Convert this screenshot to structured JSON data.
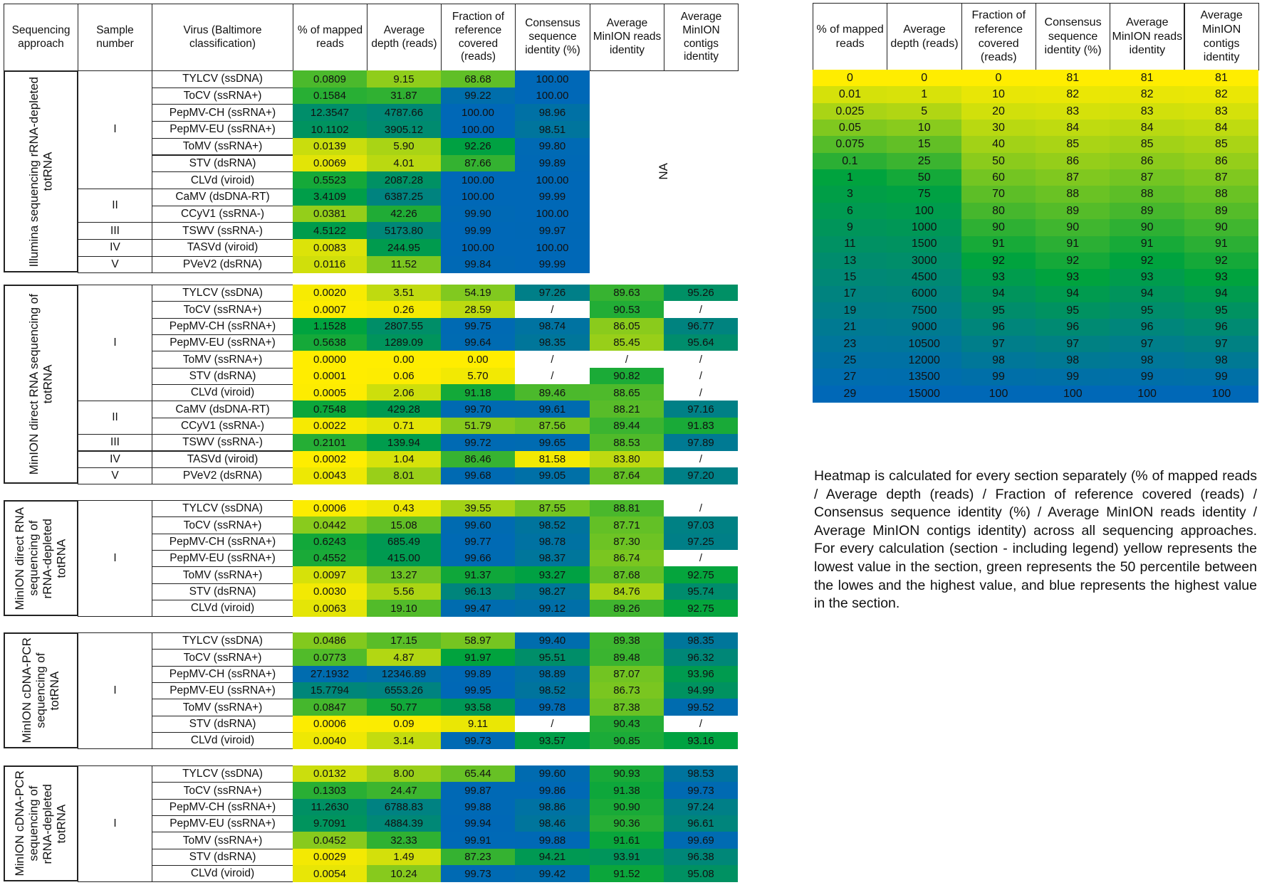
{
  "headers": [
    "Sequencing approach",
    "Sample number",
    "Virus (Baltimore classification)",
    "% of mapped reads",
    "Average depth (reads)",
    "Fraction of reference covered (reads)",
    "Consensus sequence identity (%)",
    "Average MinION reads identity",
    "Average MinION contigs identity"
  ],
  "na_label": "NA",
  "colors": {
    "low": "#ffed00",
    "mid": "#00a33e",
    "high": "#0068b7",
    "missing": "#ffffff"
  },
  "chart_data": {
    "type": "heatmap",
    "sections": [
      {
        "approach": "Illumina sequencing rRNA-depleted totRNA",
        "samples": [
          {
            "label": "I",
            "rows": [
              {
                "virus": "TYLCV (ssDNA)",
                "values": [
                  "0.0809",
                  "9.15",
                  "68.68",
                  "100.00"
                ]
              },
              {
                "virus": "ToCV (ssRNA+)",
                "values": [
                  "0.1584",
                  "31.87",
                  "99.22",
                  "100.00"
                ]
              },
              {
                "virus": "PepMV-CH (ssRNA+)",
                "values": [
                  "12.3547",
                  "4787.66",
                  "100.00",
                  "98.96"
                ]
              },
              {
                "virus": "PepMV-EU (ssRNA+)",
                "values": [
                  "10.1102",
                  "3905.12",
                  "100.00",
                  "98.51"
                ]
              },
              {
                "virus": "ToMV (ssRNA+)",
                "values": [
                  "0.0139",
                  "5.90",
                  "92.26",
                  "99.80"
                ]
              },
              {
                "virus": "STV (dsRNA)",
                "values": [
                  "0.0069",
                  "4.01",
                  "87.66",
                  "99.89"
                ]
              },
              {
                "virus": "CLVd (viroid)",
                "values": [
                  "0.5523",
                  "2087.28",
                  "100.00",
                  "100.00"
                ]
              }
            ]
          },
          {
            "label": "II",
            "rows": [
              {
                "virus": "CaMV (dsDNA-RT)",
                "values": [
                  "3.4109",
                  "6387.25",
                  "100.00",
                  "99.99"
                ]
              },
              {
                "virus": "CCyV1 (ssRNA-)",
                "values": [
                  "0.0381",
                  "42.26",
                  "99.90",
                  "100.00"
                ]
              }
            ]
          },
          {
            "label": "III",
            "rows": [
              {
                "virus": "TSWV (ssRNA-)",
                "values": [
                  "4.5122",
                  "5173.80",
                  "99.99",
                  "99.97"
                ]
              }
            ]
          },
          {
            "label": "IV",
            "rows": [
              {
                "virus": "TASVd (viroid)",
                "values": [
                  "0.0083",
                  "244.95",
                  "100.00",
                  "100.00"
                ]
              }
            ]
          },
          {
            "label": "V",
            "rows": [
              {
                "virus": "PVeV2 (dsRNA)",
                "values": [
                  "0.0116",
                  "11.52",
                  "99.84",
                  "99.99"
                ]
              }
            ]
          }
        ]
      },
      {
        "approach": "MinION direct RNA sequencing of totRNA",
        "samples": [
          {
            "label": "I",
            "rows": [
              {
                "virus": "TYLCV (ssDNA)",
                "values": [
                  "0.0020",
                  "3.51",
                  "54.19",
                  "97.26",
                  "89.63",
                  "95.26"
                ]
              },
              {
                "virus": "ToCV (ssRNA+)",
                "values": [
                  "0.0007",
                  "0.26",
                  "28.59",
                  "/",
                  "90.53",
                  "/"
                ]
              },
              {
                "virus": "PepMV-CH (ssRNA+)",
                "values": [
                  "1.1528",
                  "2807.55",
                  "99.75",
                  "98.74",
                  "86.05",
                  "96.77"
                ]
              },
              {
                "virus": "PepMV-EU (ssRNA+)",
                "values": [
                  "0.5638",
                  "1289.09",
                  "99.64",
                  "98.35",
                  "85.45",
                  "95.64"
                ]
              },
              {
                "virus": "ToMV (ssRNA+)",
                "values": [
                  "0.0000",
                  "0.00",
                  "0.00",
                  "/",
                  "/",
                  "/"
                ]
              },
              {
                "virus": "STV (dsRNA)",
                "values": [
                  "0.0001",
                  "0.06",
                  "5.70",
                  "/",
                  "90.82",
                  "/"
                ]
              },
              {
                "virus": "CLVd (viroid)",
                "values": [
                  "0.0005",
                  "2.06",
                  "91.18",
                  "89.46",
                  "88.65",
                  "/"
                ]
              }
            ]
          },
          {
            "label": "II",
            "rows": [
              {
                "virus": "CaMV (dsDNA-RT)",
                "values": [
                  "0.7548",
                  "429.28",
                  "99.70",
                  "99.61",
                  "88.21",
                  "97.16"
                ]
              },
              {
                "virus": "CCyV1 (ssRNA-)",
                "values": [
                  "0.0022",
                  "0.71",
                  "51.79",
                  "87.56",
                  "89.44",
                  "91.83"
                ]
              }
            ]
          },
          {
            "label": "III",
            "rows": [
              {
                "virus": "TSWV (ssRNA-)",
                "values": [
                  "0.2101",
                  "139.94",
                  "99.72",
                  "99.65",
                  "88.53",
                  "97.89"
                ]
              }
            ]
          },
          {
            "label": "IV",
            "rows": [
              {
                "virus": "TASVd (viroid)",
                "values": [
                  "0.0002",
                  "1.04",
                  "86.46",
                  "81.58",
                  "83.80",
                  "/"
                ]
              }
            ]
          },
          {
            "label": "V",
            "rows": [
              {
                "virus": "PVeV2 (dsRNA)",
                "values": [
                  "0.0043",
                  "8.01",
                  "99.68",
                  "99.05",
                  "87.64",
                  "97.20"
                ]
              }
            ]
          }
        ]
      },
      {
        "approach": "MinION direct RNA sequencing of rRNA-depleted totRNA",
        "samples": [
          {
            "label": "I",
            "rows": [
              {
                "virus": "TYLCV (ssDNA)",
                "values": [
                  "0.0006",
                  "0.43",
                  "39.55",
                  "87.55",
                  "88.81",
                  "/"
                ]
              },
              {
                "virus": "ToCV (ssRNA+)",
                "values": [
                  "0.0442",
                  "15.08",
                  "99.60",
                  "98.52",
                  "87.71",
                  "97.03"
                ]
              },
              {
                "virus": "PepMV-CH (ssRNA+)",
                "values": [
                  "0.6243",
                  "685.49",
                  "99.77",
                  "98.78",
                  "87.30",
                  "97.25"
                ]
              },
              {
                "virus": "PepMV-EU (ssRNA+)",
                "values": [
                  "0.4552",
                  "415.00",
                  "99.66",
                  "98.37",
                  "86.74",
                  "/"
                ]
              },
              {
                "virus": "ToMV (ssRNA+)",
                "values": [
                  "0.0097",
                  "13.27",
                  "91.37",
                  "93.27",
                  "87.68",
                  "92.75"
                ]
              },
              {
                "virus": "STV (dsRNA)",
                "values": [
                  "0.0030",
                  "5.56",
                  "96.13",
                  "98.27",
                  "84.76",
                  "95.74"
                ]
              },
              {
                "virus": "CLVd (viroid)",
                "values": [
                  "0.0063",
                  "19.10",
                  "99.47",
                  "99.12",
                  "89.26",
                  "92.75"
                ]
              }
            ]
          }
        ]
      },
      {
        "approach": "MinION cDNA-PCR sequencing of totRNA",
        "samples": [
          {
            "label": "I",
            "rows": [
              {
                "virus": "TYLCV (ssDNA)",
                "values": [
                  "0.0486",
                  "17.15",
                  "58.97",
                  "99.40",
                  "89.38",
                  "98.35"
                ]
              },
              {
                "virus": "ToCV (ssRNA+)",
                "values": [
                  "0.0773",
                  "4.87",
                  "91.97",
                  "95.51",
                  "89.48",
                  "96.32"
                ]
              },
              {
                "virus": "PepMV-CH (ssRNA+)",
                "values": [
                  "27.1932",
                  "12346.89",
                  "99.89",
                  "98.89",
                  "87.07",
                  "93.96"
                ]
              },
              {
                "virus": "PepMV-EU (ssRNA+)",
                "values": [
                  "15.7794",
                  "6553.26",
                  "99.95",
                  "98.52",
                  "86.73",
                  "94.99"
                ]
              },
              {
                "virus": "ToMV (ssRNA+)",
                "values": [
                  "0.0847",
                  "50.77",
                  "93.58",
                  "99.78",
                  "87.38",
                  "99.52"
                ]
              },
              {
                "virus": "STV (dsRNA)",
                "values": [
                  "0.0006",
                  "0.09",
                  "9.11",
                  "/",
                  "90.43",
                  "/"
                ]
              },
              {
                "virus": "CLVd (viroid)",
                "values": [
                  "0.0040",
                  "3.14",
                  "99.73",
                  "93.57",
                  "90.85",
                  "93.16"
                ]
              }
            ]
          }
        ]
      },
      {
        "approach": "MinION cDNA-PCR sequencing of rRNA-depleted totRNA",
        "samples": [
          {
            "label": "I",
            "rows": [
              {
                "virus": "TYLCV (ssDNA)",
                "values": [
                  "0.0132",
                  "8.00",
                  "65.44",
                  "99.60",
                  "90.93",
                  "98.53"
                ]
              },
              {
                "virus": "ToCV (ssRNA+)",
                "values": [
                  "0.1303",
                  "24.47",
                  "99.87",
                  "99.86",
                  "91.38",
                  "99.73"
                ]
              },
              {
                "virus": "PepMV-CH (ssRNA+)",
                "values": [
                  "11.2630",
                  "6788.83",
                  "99.88",
                  "98.86",
                  "90.90",
                  "97.24"
                ]
              },
              {
                "virus": "PepMV-EU (ssRNA+)",
                "values": [
                  "9.7091",
                  "4884.39",
                  "99.94",
                  "98.46",
                  "90.36",
                  "96.61"
                ]
              },
              {
                "virus": "ToMV (ssRNA+)",
                "values": [
                  "0.0452",
                  "32.33",
                  "99.91",
                  "99.88",
                  "91.61",
                  "99.69"
                ]
              },
              {
                "virus": "STV (dsRNA)",
                "values": [
                  "0.0029",
                  "1.49",
                  "87.23",
                  "94.21",
                  "93.91",
                  "96.38"
                ]
              },
              {
                "virus": "CLVd (viroid)",
                "values": [
                  "0.0054",
                  "10.24",
                  "99.73",
                  "99.42",
                  "91.52",
                  "95.08"
                ]
              }
            ]
          }
        ]
      }
    ],
    "legend": {
      "headers": [
        "% of mapped reads",
        "Average depth (reads)",
        "Fraction of reference covered (reads)",
        "Consensus sequence identity (%)",
        "Average MinION reads identity",
        "Average MinION contigs identity"
      ],
      "columns": [
        [
          "0",
          "0.01",
          "0.025",
          "0.05",
          "0.075",
          "0.1",
          "1",
          "3",
          "6",
          "9",
          "11",
          "13",
          "15",
          "17",
          "19",
          "21",
          "23",
          "25",
          "27",
          "29"
        ],
        [
          "0",
          "1",
          "5",
          "10",
          "15",
          "25",
          "50",
          "75",
          "100",
          "1000",
          "1500",
          "3000",
          "4500",
          "6000",
          "7500",
          "9000",
          "10500",
          "12000",
          "13500",
          "15000"
        ],
        [
          "0",
          "10",
          "20",
          "30",
          "40",
          "50",
          "60",
          "70",
          "80",
          "90",
          "91",
          "92",
          "93",
          "94",
          "95",
          "96",
          "97",
          "98",
          "99",
          "100"
        ],
        [
          "81",
          "82",
          "83",
          "84",
          "85",
          "86",
          "87",
          "88",
          "89",
          "90",
          "91",
          "92",
          "93",
          "94",
          "95",
          "96",
          "97",
          "98",
          "99",
          "100"
        ],
        [
          "81",
          "82",
          "83",
          "84",
          "85",
          "86",
          "87",
          "88",
          "89",
          "90",
          "91",
          "92",
          "93",
          "94",
          "95",
          "96",
          "97",
          "98",
          "99",
          "100"
        ],
        [
          "81",
          "82",
          "83",
          "84",
          "85",
          "86",
          "87",
          "88",
          "89",
          "90",
          "91",
          "92",
          "93",
          "94",
          "95",
          "96",
          "97",
          "98",
          "99",
          "100"
        ]
      ]
    }
  },
  "note": "Heatmap is calculated for every section separately (% of mapped reads / Average depth (reads) / Fraction of reference covered (reads) / Consensus sequence identity (%) / Average MinION reads identity / Average MinION contigs identity) across all sequencing approaches. For every calculation (section - including legend) yellow represents the lowest value in the section, green represents the 50 percentile between the lowes and the highest value, and blue represents the highest value in the section."
}
